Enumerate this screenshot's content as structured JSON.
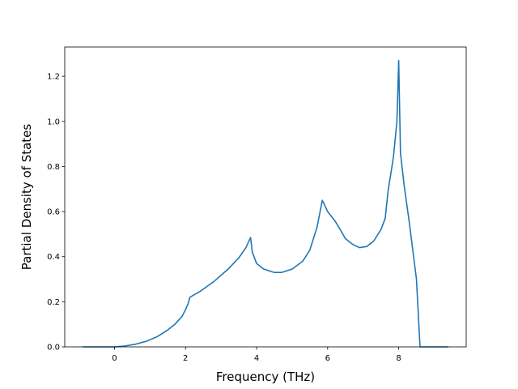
{
  "chart_data": {
    "type": "line",
    "title": "",
    "xlabel": "Frequency (THz)",
    "ylabel": "Partial Density of States",
    "xlim": [
      -1.4,
      9.9
    ],
    "ylim": [
      0.0,
      1.33
    ],
    "xticks": [
      0,
      2,
      4,
      6,
      8
    ],
    "yticks": [
      0.0,
      0.2,
      0.4,
      0.6,
      0.8,
      1.0,
      1.2
    ],
    "xtick_labels": [
      "0",
      "2",
      "4",
      "6",
      "8"
    ],
    "ytick_labels": [
      "0.0",
      "0.2",
      "0.4",
      "0.6",
      "0.8",
      "1.0",
      "1.2"
    ],
    "grid": false,
    "legend": "none",
    "series": [
      {
        "color": "#1f77b4",
        "x": [
          -0.9,
          -0.5,
          0.0,
          0.3,
          0.6,
          0.9,
          1.2,
          1.5,
          1.7,
          1.9,
          2.0,
          2.08,
          2.12,
          2.4,
          2.8,
          3.2,
          3.5,
          3.7,
          3.83,
          3.88,
          4.0,
          4.2,
          4.5,
          4.7,
          5.0,
          5.3,
          5.5,
          5.6,
          5.7,
          5.85,
          6.0,
          6.2,
          6.3,
          6.5,
          6.7,
          6.9,
          7.1,
          7.3,
          7.5,
          7.62,
          7.7,
          7.85,
          7.9,
          7.95,
          8.0,
          8.05,
          8.15,
          8.3,
          8.5,
          8.6,
          9.0,
          9.4
        ],
        "y": [
          0.0,
          0.0,
          0.0,
          0.004,
          0.012,
          0.025,
          0.045,
          0.075,
          0.1,
          0.135,
          0.165,
          0.195,
          0.22,
          0.245,
          0.29,
          0.345,
          0.395,
          0.44,
          0.485,
          0.42,
          0.37,
          0.345,
          0.33,
          0.33,
          0.345,
          0.38,
          0.43,
          0.48,
          0.53,
          0.65,
          0.6,
          0.56,
          0.535,
          0.48,
          0.455,
          0.44,
          0.445,
          0.47,
          0.52,
          0.57,
          0.69,
          0.84,
          0.92,
          1.0,
          1.27,
          0.86,
          0.72,
          0.55,
          0.3,
          0.0,
          0.0,
          0.0
        ]
      }
    ]
  }
}
